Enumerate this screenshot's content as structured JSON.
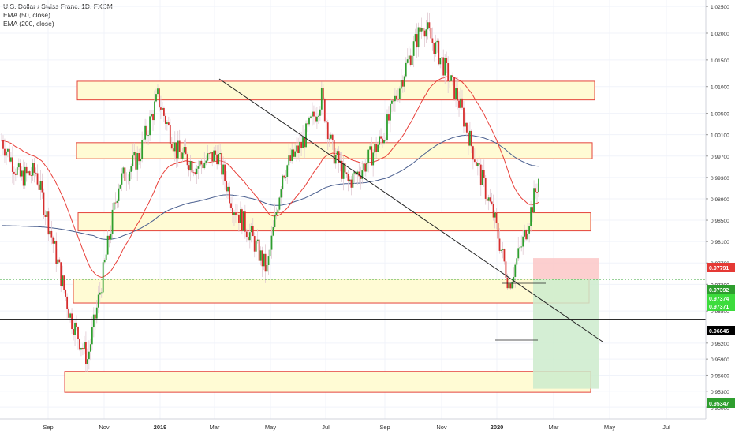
{
  "legend": {
    "title": "U.S. Dollar / Swiss Franc, 1D, FXCM",
    "ema50": "EMA (50, close)",
    "ema200": "EMA (200, close)"
  },
  "colors": {
    "up": "#2e9e2e",
    "down": "#d62e2e",
    "ema50": "#e8403a",
    "ema200": "#4a5f8f",
    "zone_fill": "#fffbd4",
    "zone_stroke": "#e5433a",
    "trendline": "#222222",
    "stop_fill": "#fbc7c7",
    "target_fill": "#cdebcd"
  },
  "chart_data": {
    "type": "candlestick",
    "symbol": "U.S. Dollar / Swiss Franc, 1D, FXCM",
    "indicators": [
      "EMA (50, close)",
      "EMA (200, close)"
    ],
    "x_labels": [
      "Sep",
      "Nov",
      "2019",
      "Mar",
      "May",
      "Jul",
      "Sep",
      "Nov",
      "2020",
      "Mar",
      "May",
      "Jul"
    ],
    "y_ticks": [
      "1.02500",
      "1.02000",
      "1.01500",
      "1.01000",
      "1.00500",
      "1.00100",
      "0.99700",
      "0.99300",
      "0.98900",
      "0.98500",
      "0.98100",
      "0.97700",
      "0.97300",
      "0.96800",
      "0.96500",
      "0.96200",
      "0.95900",
      "0.95600",
      "0.95300",
      "0.95000"
    ],
    "price_labels": [
      {
        "value": "0.97791",
        "color": "#e53935"
      },
      {
        "value": "0.97392",
        "color": "#2e9e2e"
      },
      {
        "value": "0.97374",
        "color": "#3cdc3c"
      },
      {
        "value": "0.97371",
        "color": "#3cdc3c"
      },
      {
        "value": "0.96646",
        "color": "#000000"
      },
      {
        "value": "0.95347",
        "color": "#2e9e2e"
      }
    ],
    "horizontal_line": 0.96646,
    "current_price_line": 0.97392,
    "zones": [
      {
        "low": 1.0075,
        "high": 1.011
      },
      {
        "low": 0.9965,
        "high": 0.9995
      },
      {
        "low": 0.983,
        "high": 0.9864
      },
      {
        "low": 0.9695,
        "high": 0.974
      },
      {
        "low": 0.9528,
        "high": 0.9567
      }
    ],
    "trendline": {
      "start": [
        "Mar 2019",
        1.013
      ],
      "end": [
        "Apr 2020",
        0.9653
      ]
    },
    "position": {
      "type": "long",
      "entry": 0.97392,
      "stop": 0.97791,
      "target": 0.95347
    },
    "price_range": [
      0.9478,
      1.0262
    ],
    "candle_count": 345,
    "price_path": [
      [
        0,
        1.0
      ],
      [
        12,
        0.993
      ],
      [
        22,
        0.994
      ],
      [
        32,
        0.982
      ],
      [
        44,
        0.967
      ],
      [
        55,
        0.959
      ],
      [
        62,
        0.97
      ],
      [
        75,
        0.992
      ],
      [
        88,
        0.997
      ],
      [
        100,
        1.008
      ],
      [
        112,
        0.998
      ],
      [
        125,
        0.995
      ],
      [
        138,
        0.9975
      ],
      [
        148,
        0.988
      ],
      [
        160,
        0.982
      ],
      [
        170,
        0.9755
      ],
      [
        180,
        0.994
      ],
      [
        192,
        0.999
      ],
      [
        205,
        1.008
      ],
      [
        212,
        0.998
      ],
      [
        222,
        0.992
      ],
      [
        232,
        0.995
      ],
      [
        245,
        1.001
      ],
      [
        258,
        1.013
      ],
      [
        270,
        1.022
      ],
      [
        280,
        1.016
      ],
      [
        292,
        1.008
      ],
      [
        305,
        0.995
      ],
      [
        315,
        0.986
      ],
      [
        325,
        0.973
      ],
      [
        335,
        0.982
      ],
      [
        345,
        0.994
      ],
      [
        358,
        0.976
      ],
      [
        368,
        0.992
      ],
      [
        380,
        0.998
      ],
      [
        392,
        0.987
      ],
      [
        402,
        0.973
      ],
      [
        412,
        0.985
      ],
      [
        424,
        0.994
      ],
      [
        436,
        0.998
      ],
      [
        446,
        0.993
      ],
      [
        455,
        0.988
      ],
      [
        465,
        0.987
      ],
      [
        475,
        0.999
      ],
      [
        488,
        0.992
      ],
      [
        498,
        0.988
      ],
      [
        508,
        0.987
      ],
      [
        520,
        0.993
      ],
      [
        530,
        0.997
      ],
      [
        540,
        0.998
      ],
      [
        550,
        0.988
      ],
      [
        560,
        0.988
      ],
      [
        572,
        0.995
      ],
      [
        582,
        0.996
      ],
      [
        592,
        0.998
      ],
      [
        600,
        0.992
      ],
      [
        608,
        0.988
      ],
      [
        616,
        0.983
      ],
      [
        624,
        0.979
      ],
      [
        630,
        0.972
      ],
      [
        638,
        0.968
      ],
      [
        646,
        0.971
      ],
      [
        654,
        0.965
      ],
      [
        662,
        0.972
      ],
      [
        670,
        0.974
      ]
    ]
  }
}
